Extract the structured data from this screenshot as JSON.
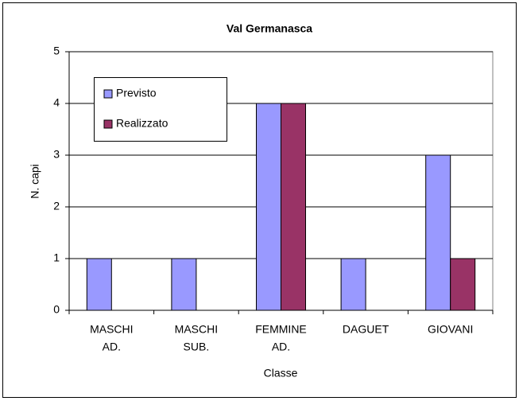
{
  "chart_data": {
    "type": "bar",
    "title": "Val Germanasca",
    "categories": [
      [
        "MASCHI",
        "AD."
      ],
      [
        "MASCHI",
        "SUB."
      ],
      [
        "FEMMINE",
        "AD."
      ],
      [
        "DAGUET"
      ],
      [
        "GIOVANI"
      ]
    ],
    "series": [
      {
        "name": "Previsto",
        "color": "#9999ff",
        "values": [
          1,
          1,
          4,
          1,
          3
        ]
      },
      {
        "name": "Realizzato",
        "color": "#993366",
        "values": [
          0,
          0,
          4,
          0,
          1
        ]
      }
    ],
    "ylim": [
      0,
      5
    ],
    "yticks": [
      0,
      1,
      2,
      3,
      4,
      5
    ],
    "grid": true,
    "xlabel": "Classe",
    "ylabel": "N. capi",
    "legend": "upper left"
  }
}
